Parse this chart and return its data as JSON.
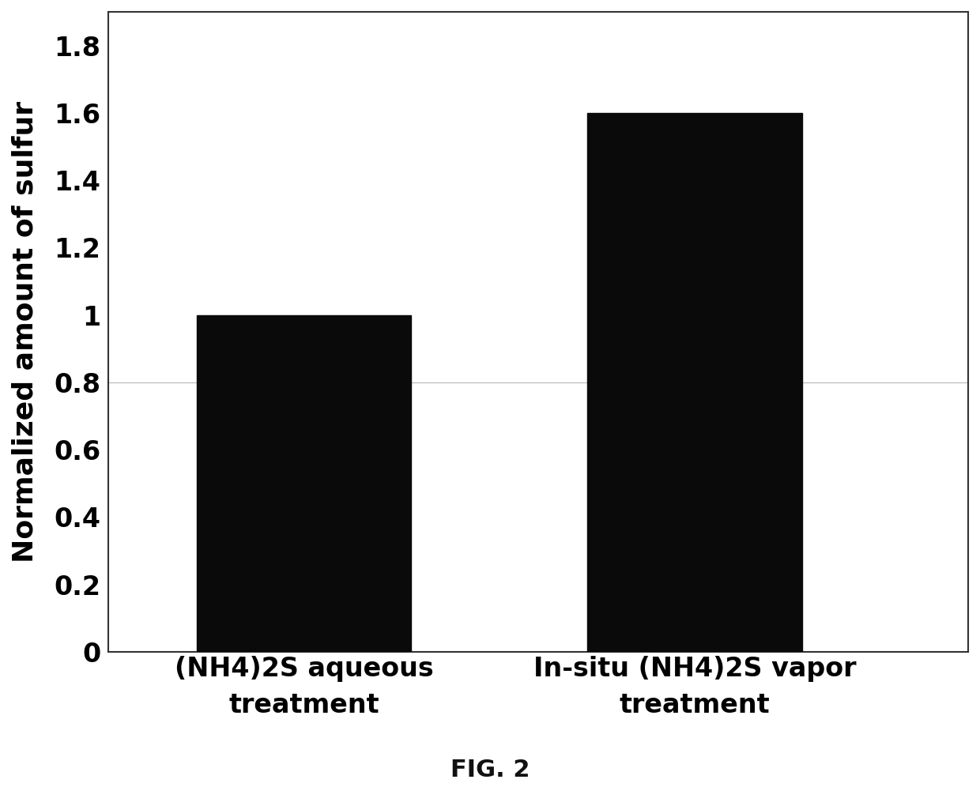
{
  "categories": [
    "(NH4)2S aqueous\ntreatment",
    "In-situ (NH4)2S vapor\ntreatment"
  ],
  "values": [
    1.0,
    1.6
  ],
  "bar_colors": [
    "#0a0a0a",
    "#0a0a0a"
  ],
  "bar_width": 0.55,
  "bar_positions": [
    1,
    2
  ],
  "ylabel": "Normalized amount of sulfur",
  "ylim": [
    0,
    1.9
  ],
  "yticks": [
    0,
    0.2,
    0.4,
    0.6,
    0.8,
    1.0,
    1.2,
    1.4,
    1.6,
    1.8
  ],
  "caption": "FIG. 2",
  "background_color": "#ffffff",
  "ylabel_fontsize": 26,
  "tick_fontsize": 24,
  "xlabel_fontsize": 24,
  "caption_fontsize": 22,
  "grid_line_y": 0.8,
  "grid_color": "#bbbbbb",
  "spine_color": "#333333",
  "xlim": [
    0.5,
    2.7
  ]
}
